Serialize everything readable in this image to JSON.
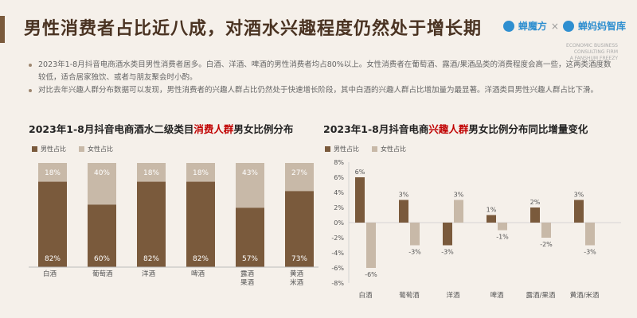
{
  "header": {
    "title": "男性消费者占比近八成，对酒水兴趣程度仍然处于增长期",
    "brand1": "蝉魔方",
    "brand_sep": "×",
    "brand2": "蝉妈妈智库",
    "brand_sub1": "ECONOMIC BUSINESS",
    "brand_sub2": "CONSULTING FIRM",
    "brand_sub3": "A FANSHUM FREEZY"
  },
  "bullets": [
    "2023年1-8月抖音电商酒水类目男性消费者居多。白酒、洋酒、啤酒的男性消费者均占80%以上。女性消费者在葡萄酒、露酒/果酒品类的消费程度会高一些，这两类酒度数较低，适合居家独饮、或者与朋友聚会时小酌。",
    "对比去年兴趣人群分布数据可以发现，男性消费者的兴趣人群占比仍然处于快速增长阶段，其中白酒的兴趣人群占比增加量为最显著。洋酒类目男性兴趣人群占比下滑。"
  ],
  "colors": {
    "male": "#7a5a3c",
    "female": "#c8b9a8",
    "accent": "#7a5a3c",
    "highlight": "#c00000"
  },
  "chart_data": [
    {
      "type": "bar",
      "title_pre": "2023年1-8月抖音电商酒水二级类目",
      "title_hl": "消费人群",
      "title_post": "男女比例分布",
      "stacked": true,
      "categories": [
        "白酒",
        "葡萄酒",
        "洋酒",
        "啤酒",
        "露酒\n果酒",
        "黄酒\n米酒"
      ],
      "series": [
        {
          "name": "男性占比",
          "values": [
            82,
            60,
            82,
            82,
            57,
            73
          ],
          "labels": [
            "82%",
            "60%",
            "82%",
            "82%",
            "57%",
            "73%"
          ]
        },
        {
          "name": "女性占比",
          "values": [
            18,
            40,
            18,
            18,
            43,
            27
          ],
          "labels": [
            "18%",
            "40%",
            "18%",
            "18%",
            "43%",
            "27%"
          ]
        }
      ],
      "ylim": [
        0,
        100
      ]
    },
    {
      "type": "bar",
      "title_pre": "2023年1-8月抖音电商",
      "title_hl": "兴趣人群",
      "title_post": "男女比例分布同比增量变化",
      "categories": [
        "白酒",
        "葡萄酒",
        "洋酒",
        "啤酒",
        "露酒/果酒",
        "黄酒/米酒"
      ],
      "series": [
        {
          "name": "男性占比",
          "values": [
            6,
            3,
            -3,
            1,
            2,
            3
          ],
          "labels": [
            "6%",
            "3%",
            "-3%",
            "1%",
            "2%",
            "3%"
          ]
        },
        {
          "name": "女性占比",
          "values": [
            -6,
            -3,
            3,
            -1,
            -2,
            -3
          ],
          "labels": [
            "-6%",
            "-3%",
            "3%",
            "-1%",
            "-2%",
            "-3%"
          ]
        }
      ],
      "ylim": [
        -8,
        8
      ],
      "yticks": [
        "-8%",
        "-6%",
        "-4%",
        "-2%",
        "0%",
        "2%",
        "4%",
        "6%",
        "8%"
      ]
    }
  ]
}
